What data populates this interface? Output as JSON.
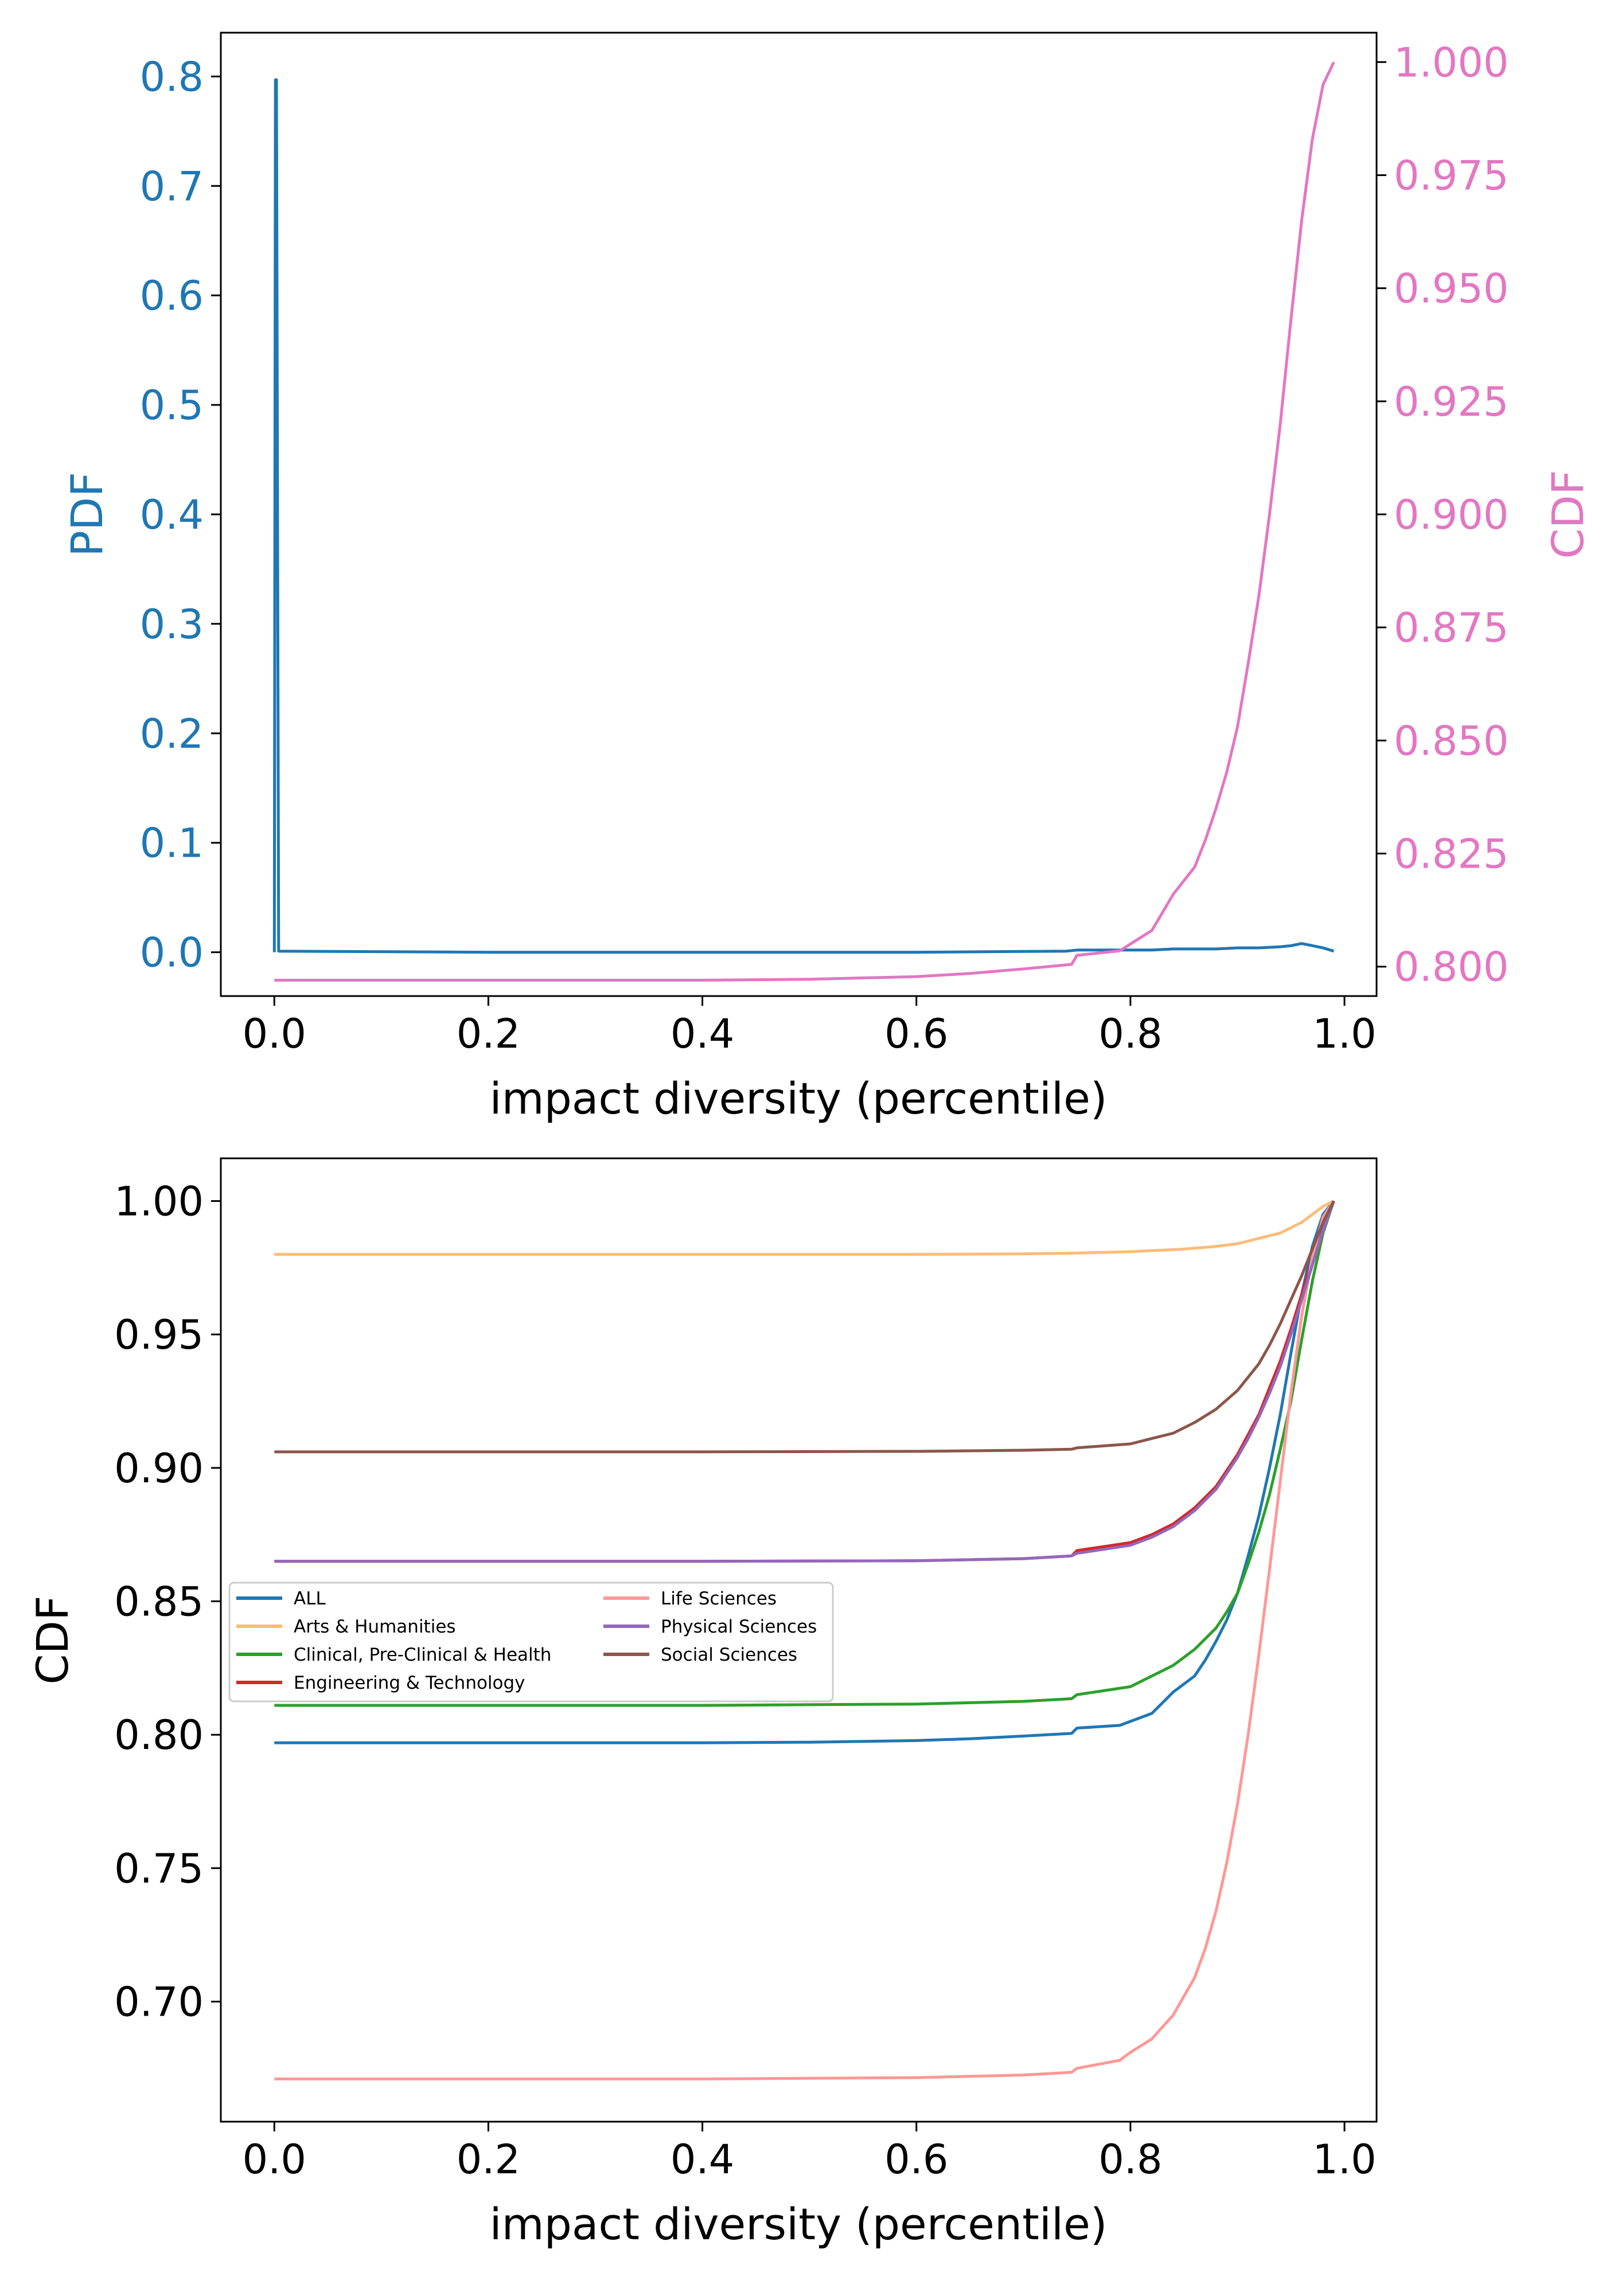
{
  "chart_data": [
    {
      "type": "line",
      "dual_axis": true,
      "xlabel": "impact diversity (percentile)",
      "ylabel_left": "PDF",
      "ylabel_right": "CDF",
      "xlim": [
        -0.05,
        1.03
      ],
      "ylim_left": [
        -0.04,
        0.84
      ],
      "ylim_right": [
        0.7935,
        1.0065
      ],
      "x_ticks": [
        "0.0",
        "0.2",
        "0.4",
        "0.6",
        "0.8",
        "1.0"
      ],
      "y_ticks_left": [
        "0.0",
        "0.1",
        "0.2",
        "0.3",
        "0.4",
        "0.5",
        "0.6",
        "0.7",
        "0.8"
      ],
      "y_ticks_right": [
        "0.800",
        "0.825",
        "0.850",
        "0.875",
        "0.900",
        "0.925",
        "0.950",
        "0.975",
        "1.000"
      ],
      "left_axis_color": "#1f77b4",
      "right_axis_color": "#e377c2",
      "grid": false,
      "series": [
        {
          "axis": "left",
          "color": "#1f77b4",
          "x": [
            0,
            0.001,
            0.002,
            0.004,
            0.2,
            0.4,
            0.6,
            0.74,
            0.75,
            0.8,
            0.82,
            0.84,
            0.86,
            0.88,
            0.9,
            0.92,
            0.94,
            0.95,
            0.96,
            0.97,
            0.98,
            0.99
          ],
          "y": [
            0,
            0.797,
            0.797,
            0.001,
            0.0,
            0.0,
            0.0,
            0.001,
            0.002,
            0.002,
            0.002,
            0.003,
            0.003,
            0.003,
            0.004,
            0.004,
            0.005,
            0.006,
            0.008,
            0.006,
            0.004,
            0.001
          ]
        },
        {
          "axis": "right",
          "color": "#e377c2",
          "x": [
            0,
            0.2,
            0.4,
            0.5,
            0.6,
            0.65,
            0.7,
            0.745,
            0.75,
            0.79,
            0.8,
            0.82,
            0.83,
            0.84,
            0.86,
            0.87,
            0.88,
            0.89,
            0.9,
            0.91,
            0.92,
            0.93,
            0.94,
            0.95,
            0.96,
            0.97,
            0.98,
            0.99
          ],
          "y": [
            0.797,
            0.797,
            0.797,
            0.7972,
            0.7978,
            0.7985,
            0.7995,
            0.8005,
            0.8025,
            0.8035,
            0.805,
            0.808,
            0.812,
            0.816,
            0.822,
            0.828,
            0.835,
            0.843,
            0.853,
            0.867,
            0.882,
            0.9,
            0.92,
            0.943,
            0.965,
            0.983,
            0.995,
            1.0
          ]
        }
      ]
    },
    {
      "type": "line",
      "xlabel": "impact diversity (percentile)",
      "ylabel": "CDF",
      "xlim": [
        -0.05,
        1.03
      ],
      "ylim": [
        0.655,
        1.016
      ],
      "x_ticks": [
        "0.0",
        "0.2",
        "0.4",
        "0.6",
        "0.8",
        "1.0"
      ],
      "y_ticks": [
        "0.70",
        "0.75",
        "0.80",
        "0.85",
        "0.90",
        "0.95",
        "1.00"
      ],
      "grid": false,
      "legend_position": "center-left",
      "legend_columns": 2,
      "series": [
        {
          "name": "ALL",
          "color": "#1f77b4",
          "x": [
            0,
            0.2,
            0.4,
            0.5,
            0.6,
            0.65,
            0.7,
            0.745,
            0.75,
            0.79,
            0.8,
            0.82,
            0.83,
            0.84,
            0.86,
            0.87,
            0.88,
            0.89,
            0.9,
            0.91,
            0.92,
            0.93,
            0.94,
            0.95,
            0.96,
            0.97,
            0.98,
            0.99
          ],
          "y": [
            0.797,
            0.797,
            0.797,
            0.7972,
            0.7978,
            0.7985,
            0.7995,
            0.8005,
            0.8025,
            0.8035,
            0.805,
            0.808,
            0.812,
            0.816,
            0.822,
            0.828,
            0.835,
            0.843,
            0.853,
            0.867,
            0.882,
            0.9,
            0.92,
            0.943,
            0.965,
            0.983,
            0.995,
            1.0
          ]
        },
        {
          "name": "Arts & Humanities",
          "color": "#ffbb78",
          "x": [
            0,
            0.2,
            0.4,
            0.6,
            0.7,
            0.75,
            0.8,
            0.85,
            0.88,
            0.9,
            0.92,
            0.94,
            0.96,
            0.97,
            0.98,
            0.99
          ],
          "y": [
            0.98,
            0.98,
            0.98,
            0.98,
            0.9802,
            0.9805,
            0.981,
            0.982,
            0.983,
            0.984,
            0.986,
            0.988,
            0.992,
            0.995,
            0.998,
            1.0
          ]
        },
        {
          "name": "Clinical, Pre-Clinical & Health",
          "color": "#2ca02c",
          "x": [
            0,
            0.2,
            0.4,
            0.6,
            0.7,
            0.745,
            0.75,
            0.8,
            0.82,
            0.84,
            0.86,
            0.88,
            0.89,
            0.9,
            0.91,
            0.92,
            0.93,
            0.94,
            0.95,
            0.96,
            0.97,
            0.98,
            0.99
          ],
          "y": [
            0.811,
            0.811,
            0.811,
            0.8115,
            0.8125,
            0.8135,
            0.815,
            0.818,
            0.822,
            0.826,
            0.832,
            0.84,
            0.846,
            0.853,
            0.864,
            0.876,
            0.89,
            0.907,
            0.925,
            0.948,
            0.97,
            0.988,
            1.0
          ]
        },
        {
          "name": "Engineering & Technology",
          "color": "#d62728",
          "x": [
            0,
            0.2,
            0.4,
            0.6,
            0.7,
            0.745,
            0.75,
            0.8,
            0.82,
            0.84,
            0.86,
            0.88,
            0.9,
            0.92,
            0.93,
            0.94,
            0.95,
            0.96,
            0.97,
            0.98,
            0.99
          ],
          "y": [
            0.865,
            0.865,
            0.865,
            0.8652,
            0.866,
            0.867,
            0.869,
            0.872,
            0.875,
            0.879,
            0.885,
            0.893,
            0.905,
            0.92,
            0.93,
            0.94,
            0.952,
            0.965,
            0.978,
            0.99,
            1.0
          ]
        },
        {
          "name": "Life Sciences",
          "color": "#ff9896",
          "x": [
            0,
            0.2,
            0.4,
            0.6,
            0.7,
            0.745,
            0.75,
            0.79,
            0.8,
            0.82,
            0.84,
            0.86,
            0.87,
            0.88,
            0.89,
            0.9,
            0.91,
            0.92,
            0.93,
            0.94,
            0.95,
            0.96,
            0.97,
            0.98,
            0.99
          ],
          "y": [
            0.671,
            0.671,
            0.671,
            0.6715,
            0.6725,
            0.6735,
            0.675,
            0.678,
            0.681,
            0.686,
            0.695,
            0.709,
            0.72,
            0.734,
            0.752,
            0.774,
            0.8,
            0.83,
            0.862,
            0.895,
            0.928,
            0.957,
            0.979,
            0.994,
            1.0
          ]
        },
        {
          "name": "Physical Sciences",
          "color": "#9467bd",
          "x": [
            0,
            0.2,
            0.4,
            0.6,
            0.7,
            0.745,
            0.75,
            0.8,
            0.82,
            0.84,
            0.86,
            0.88,
            0.9,
            0.91,
            0.92,
            0.93,
            0.94,
            0.95,
            0.96,
            0.97,
            0.98,
            0.99
          ],
          "y": [
            0.865,
            0.865,
            0.865,
            0.8652,
            0.866,
            0.867,
            0.868,
            0.871,
            0.874,
            0.878,
            0.884,
            0.892,
            0.904,
            0.911,
            0.919,
            0.928,
            0.938,
            0.95,
            0.963,
            0.976,
            0.989,
            1.0
          ]
        },
        {
          "name": "Social Sciences",
          "color": "#8c564b",
          "x": [
            0,
            0.2,
            0.4,
            0.6,
            0.7,
            0.745,
            0.75,
            0.8,
            0.82,
            0.84,
            0.86,
            0.88,
            0.9,
            0.92,
            0.93,
            0.94,
            0.95,
            0.96,
            0.97,
            0.98,
            0.99
          ],
          "y": [
            0.906,
            0.906,
            0.906,
            0.9062,
            0.9066,
            0.907,
            0.9075,
            0.909,
            0.911,
            0.913,
            0.917,
            0.922,
            0.929,
            0.939,
            0.946,
            0.954,
            0.963,
            0.972,
            0.982,
            0.992,
            1.0
          ]
        }
      ]
    }
  ]
}
